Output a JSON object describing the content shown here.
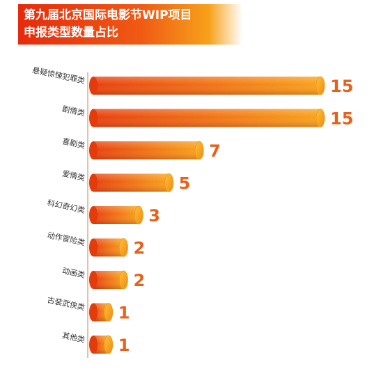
{
  "chart_data": {
    "type": "bar",
    "orientation": "horizontal",
    "title": [
      "第九届北京国际电影节WIP项目",
      "申报类型数量占比"
    ],
    "categories": [
      "悬疑惊悚犯罪类",
      "剧情类",
      "喜剧类",
      "爱情类",
      "科幻奇幻类",
      "动作冒险类",
      "动画类",
      "古装武侠类",
      "其他类"
    ],
    "values": [
      15,
      15,
      7,
      5,
      3,
      2,
      2,
      1,
      1
    ],
    "value_labels_shown": true,
    "grid": false,
    "colors": {
      "bar_start": "#e8410e",
      "bar_end": "#f9a21b",
      "label": "#e8611a",
      "axis": "#c8864a",
      "title_bg_start": "#e62a0c",
      "title_bg_end": "#f7a11a"
    }
  }
}
